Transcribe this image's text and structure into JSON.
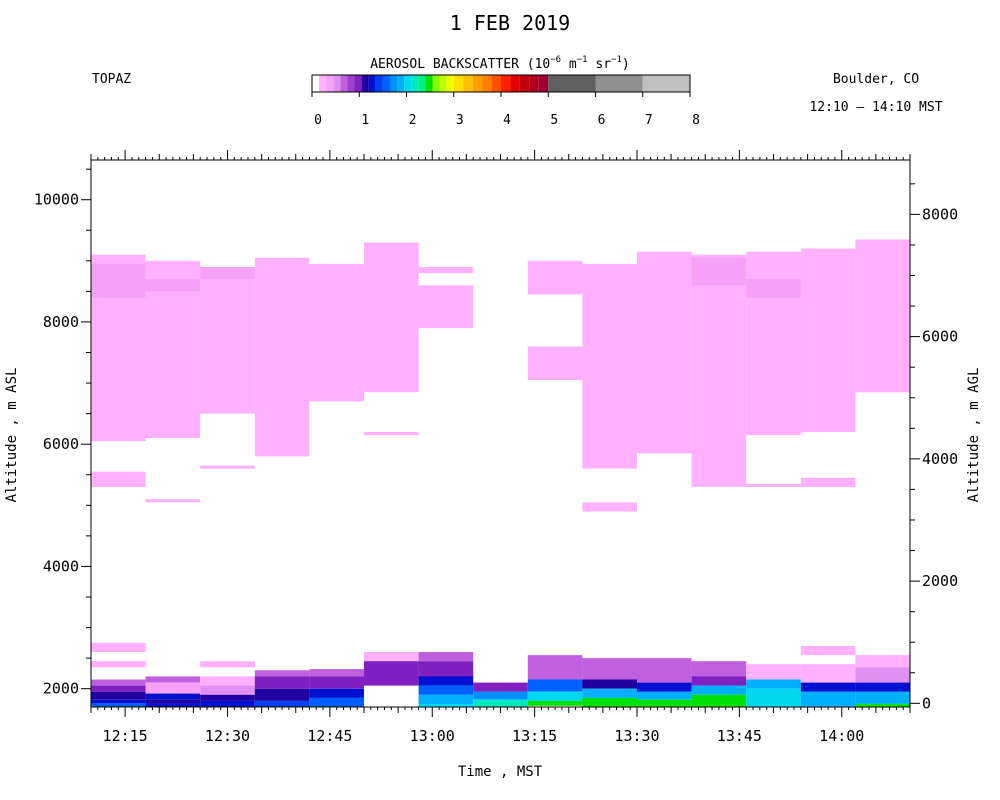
{
  "chart_data": {
    "type": "heatmap",
    "title": "1 FEB 2019",
    "instrument": "TOPAZ",
    "location": "Boulder, CO",
    "time_range": "12:10 – 14:10 MST",
    "colorbar": {
      "title_main": "AEROSOL BACKSCATTER (10",
      "title_exp1": "−6",
      "title_m": " m",
      "title_exp2": "−1",
      "title_sr": " sr",
      "title_exp3": "−1",
      "title_close": ")",
      "range": [
        0,
        8
      ],
      "ticks": [
        "0",
        "1",
        "2",
        "3",
        "4",
        "5",
        "6",
        "7",
        "8"
      ],
      "colors": [
        {
          "from": 0.0,
          "to": 0.15,
          "color": "#ffffff"
        },
        {
          "from": 0.15,
          "to": 0.3,
          "color": "#ffb0ff"
        },
        {
          "from": 0.3,
          "to": 0.45,
          "color": "#f7a0f7"
        },
        {
          "from": 0.45,
          "to": 0.6,
          "color": "#e090f0"
        },
        {
          "from": 0.6,
          "to": 0.75,
          "color": "#c060e0"
        },
        {
          "from": 0.75,
          "to": 0.9,
          "color": "#a040d0"
        },
        {
          "from": 0.9,
          "to": 1.05,
          "color": "#8020c0"
        },
        {
          "from": 1.05,
          "to": 1.2,
          "color": "#2000a0"
        },
        {
          "from": 1.2,
          "to": 1.35,
          "color": "#0010d0"
        },
        {
          "from": 1.35,
          "to": 1.5,
          "color": "#0040f0"
        },
        {
          "from": 1.5,
          "to": 1.65,
          "color": "#0060ff"
        },
        {
          "from": 1.65,
          "to": 1.8,
          "color": "#0090ff"
        },
        {
          "from": 1.8,
          "to": 1.95,
          "color": "#00b0ff"
        },
        {
          "from": 1.95,
          "to": 2.1,
          "color": "#00d8f0"
        },
        {
          "from": 2.1,
          "to": 2.25,
          "color": "#00e8c0"
        },
        {
          "from": 2.25,
          "to": 2.4,
          "color": "#00f080"
        },
        {
          "from": 2.4,
          "to": 2.55,
          "color": "#00e000"
        },
        {
          "from": 2.55,
          "to": 2.7,
          "color": "#80ff00"
        },
        {
          "from": 2.7,
          "to": 2.85,
          "color": "#c0ff00"
        },
        {
          "from": 2.85,
          "to": 3.0,
          "color": "#f0ff00"
        },
        {
          "from": 3.0,
          "to": 3.2,
          "color": "#ffe000"
        },
        {
          "from": 3.2,
          "to": 3.4,
          "color": "#ffc000"
        },
        {
          "from": 3.4,
          "to": 3.6,
          "color": "#ffa000"
        },
        {
          "from": 3.6,
          "to": 3.8,
          "color": "#ff8000"
        },
        {
          "from": 3.8,
          "to": 4.0,
          "color": "#ff5000"
        },
        {
          "from": 4.0,
          "to": 4.2,
          "color": "#ff2000"
        },
        {
          "from": 4.2,
          "to": 4.4,
          "color": "#e00000"
        },
        {
          "from": 4.4,
          "to": 4.6,
          "color": "#c00010"
        },
        {
          "from": 4.6,
          "to": 4.8,
          "color": "#b00020"
        },
        {
          "from": 4.8,
          "to": 5.0,
          "color": "#a00030"
        },
        {
          "from": 5.0,
          "to": 6.0,
          "color": "#606060"
        },
        {
          "from": 6.0,
          "to": 7.0,
          "color": "#909090"
        },
        {
          "from": 7.0,
          "to": 8.0,
          "color": "#c0c0c0"
        }
      ]
    },
    "xlabel": "Time , MST",
    "ylabel_left": "Altitude , m ASL",
    "ylabel_right": "Altitude , m AGL",
    "x_range_minutes_after_noon": [
      10,
      130
    ],
    "x_ticks": [
      {
        "value": 15,
        "label": "12:15"
      },
      {
        "value": 30,
        "label": "12:30"
      },
      {
        "value": 45,
        "label": "12:45"
      },
      {
        "value": 60,
        "label": "13:00"
      },
      {
        "value": 75,
        "label": "13:15"
      },
      {
        "value": 90,
        "label": "13:30"
      },
      {
        "value": 105,
        "label": "13:45"
      },
      {
        "value": 120,
        "label": "14:00"
      }
    ],
    "y_left_range": [
      1700,
      10650
    ],
    "y_left_ticks": [
      {
        "value": 2000,
        "label": "2000"
      },
      {
        "value": 4000,
        "label": "4000"
      },
      {
        "value": 6000,
        "label": "6000"
      },
      {
        "value": 8000,
        "label": "8000"
      },
      {
        "value": 10000,
        "label": "10000"
      }
    ],
    "y_right_ticks": [
      {
        "value": 0,
        "label": "0"
      },
      {
        "value": 2000,
        "label": "2000"
      },
      {
        "value": 4000,
        "label": "4000"
      },
      {
        "value": 6000,
        "label": "6000"
      },
      {
        "value": 8000,
        "label": "8000"
      }
    ],
    "y_right_offset_m": 1760,
    "grid": false,
    "profiles": [
      {
        "start": 10,
        "end": 18,
        "layers": [
          {
            "bottom": 6050,
            "top": 9100,
            "value": 0.2
          },
          {
            "bottom": 8400,
            "top": 8950,
            "value": 0.35
          },
          {
            "bottom": 5300,
            "top": 5550,
            "value": 0.2
          },
          {
            "bottom": 2600,
            "top": 2750,
            "value": 0.2
          },
          {
            "bottom": 2350,
            "top": 2450,
            "value": 0.2
          },
          {
            "bottom": 2050,
            "top": 2150,
            "value": 0.6
          },
          {
            "bottom": 1950,
            "top": 2050,
            "value": 0.9
          },
          {
            "bottom": 1820,
            "top": 1950,
            "value": 1.1
          },
          {
            "bottom": 1760,
            "top": 1820,
            "value": 1.3
          },
          {
            "bottom": 1700,
            "top": 1760,
            "value": 1.6
          }
        ]
      },
      {
        "start": 18,
        "end": 26,
        "layers": [
          {
            "bottom": 6100,
            "top": 9000,
            "value": 0.2
          },
          {
            "bottom": 8500,
            "top": 8700,
            "value": 0.35
          },
          {
            "bottom": 5050,
            "top": 5100,
            "value": 0.2
          },
          {
            "bottom": 2100,
            "top": 2200,
            "value": 0.6
          },
          {
            "bottom": 1920,
            "top": 2100,
            "value": 0.3
          },
          {
            "bottom": 1820,
            "top": 1920,
            "value": 1.3
          },
          {
            "bottom": 1760,
            "top": 1820,
            "value": 1.1
          },
          {
            "bottom": 1700,
            "top": 1760,
            "value": 1.2
          }
        ]
      },
      {
        "start": 26,
        "end": 34,
        "layers": [
          {
            "bottom": 6500,
            "top": 8900,
            "value": 0.2
          },
          {
            "bottom": 8700,
            "top": 8900,
            "value": 0.35
          },
          {
            "bottom": 5600,
            "top": 5650,
            "value": 0.2
          },
          {
            "bottom": 2350,
            "top": 2450,
            "value": 0.2
          },
          {
            "bottom": 2050,
            "top": 2200,
            "value": 0.25
          },
          {
            "bottom": 1900,
            "top": 2050,
            "value": 0.5
          },
          {
            "bottom": 1800,
            "top": 1900,
            "value": 1.1
          },
          {
            "bottom": 1700,
            "top": 1800,
            "value": 1.3
          }
        ]
      },
      {
        "start": 34,
        "end": 42,
        "layers": [
          {
            "bottom": 5800,
            "top": 9050,
            "value": 0.2
          },
          {
            "bottom": 2200,
            "top": 2300,
            "value": 0.6
          },
          {
            "bottom": 2000,
            "top": 2200,
            "value": 0.9
          },
          {
            "bottom": 1800,
            "top": 2000,
            "value": 1.1
          },
          {
            "bottom": 1700,
            "top": 1800,
            "value": 1.4
          }
        ]
      },
      {
        "start": 42,
        "end": 50,
        "layers": [
          {
            "bottom": 6700,
            "top": 8950,
            "value": 0.2
          },
          {
            "bottom": 2200,
            "top": 2320,
            "value": 0.6
          },
          {
            "bottom": 2000,
            "top": 2200,
            "value": 0.9
          },
          {
            "bottom": 1850,
            "top": 2000,
            "value": 1.3
          },
          {
            "bottom": 1700,
            "top": 1850,
            "value": 1.6
          }
        ]
      },
      {
        "start": 50,
        "end": 58,
        "layers": [
          {
            "bottom": 6850,
            "top": 9300,
            "value": 0.2
          },
          {
            "bottom": 6150,
            "top": 6200,
            "value": 0.2
          },
          {
            "bottom": 2450,
            "top": 2600,
            "value": 0.2
          },
          {
            "bottom": 2050,
            "top": 2450,
            "value": 0.95
          }
        ]
      },
      {
        "start": 58,
        "end": 66,
        "layers": [
          {
            "bottom": 7900,
            "top": 8600,
            "value": 0.2
          },
          {
            "bottom": 8800,
            "top": 8900,
            "value": 0.2
          },
          {
            "bottom": 2450,
            "top": 2600,
            "value": 0.6
          },
          {
            "bottom": 2200,
            "top": 2450,
            "value": 0.95
          },
          {
            "bottom": 2050,
            "top": 2200,
            "value": 1.3
          },
          {
            "bottom": 1900,
            "top": 2050,
            "value": 1.6
          },
          {
            "bottom": 1750,
            "top": 1900,
            "value": 1.85
          },
          {
            "bottom": 1700,
            "top": 1750,
            "value": 2.0
          }
        ]
      },
      {
        "start": 66,
        "end": 74,
        "layers": [
          {
            "bottom": 1950,
            "top": 2100,
            "value": 0.95
          },
          {
            "bottom": 1820,
            "top": 1950,
            "value": 1.7
          },
          {
            "bottom": 1700,
            "top": 1820,
            "value": 2.1
          }
        ]
      },
      {
        "start": 74,
        "end": 82,
        "layers": [
          {
            "bottom": 8450,
            "top": 9000,
            "value": 0.2
          },
          {
            "bottom": 7050,
            "top": 7600,
            "value": 0.2
          },
          {
            "bottom": 2150,
            "top": 2550,
            "value": 0.7
          },
          {
            "bottom": 1950,
            "top": 2150,
            "value": 1.6
          },
          {
            "bottom": 1800,
            "top": 1950,
            "value": 2.0
          },
          {
            "bottom": 1720,
            "top": 1800,
            "value": 2.4
          }
        ]
      },
      {
        "start": 82,
        "end": 90,
        "layers": [
          {
            "bottom": 5600,
            "top": 8950,
            "value": 0.2
          },
          {
            "bottom": 4900,
            "top": 5050,
            "value": 0.2
          },
          {
            "bottom": 2150,
            "top": 2500,
            "value": 0.7
          },
          {
            "bottom": 2000,
            "top": 2150,
            "value": 1.1
          },
          {
            "bottom": 1850,
            "top": 2000,
            "value": 1.9
          },
          {
            "bottom": 1700,
            "top": 1850,
            "value": 2.5
          }
        ]
      },
      {
        "start": 90,
        "end": 98,
        "layers": [
          {
            "bottom": 5850,
            "top": 9150,
            "value": 0.2
          },
          {
            "bottom": 2100,
            "top": 2500,
            "value": 0.7
          },
          {
            "bottom": 1950,
            "top": 2100,
            "value": 1.2
          },
          {
            "bottom": 1820,
            "top": 1950,
            "value": 1.9
          },
          {
            "bottom": 1700,
            "top": 1820,
            "value": 2.5
          }
        ]
      },
      {
        "start": 98,
        "end": 106,
        "layers": [
          {
            "bottom": 5300,
            "top": 9100,
            "value": 0.2
          },
          {
            "bottom": 8600,
            "top": 9050,
            "value": 0.35
          },
          {
            "bottom": 2200,
            "top": 2450,
            "value": 0.7
          },
          {
            "bottom": 2050,
            "top": 2200,
            "value": 1.0
          },
          {
            "bottom": 1900,
            "top": 2050,
            "value": 1.8
          },
          {
            "bottom": 1700,
            "top": 1900,
            "value": 2.5
          }
        ]
      },
      {
        "start": 106,
        "end": 114,
        "layers": [
          {
            "bottom": 6150,
            "top": 9150,
            "value": 0.2
          },
          {
            "bottom": 8400,
            "top": 8700,
            "value": 0.35
          },
          {
            "bottom": 5300,
            "top": 5350,
            "value": 0.2
          },
          {
            "bottom": 2150,
            "top": 2400,
            "value": 0.2
          },
          {
            "bottom": 2000,
            "top": 2150,
            "value": 1.8
          },
          {
            "bottom": 1700,
            "top": 2000,
            "value": 2.0
          }
        ]
      },
      {
        "start": 114,
        "end": 122,
        "layers": [
          {
            "bottom": 6200,
            "top": 9200,
            "value": 0.2
          },
          {
            "bottom": 5300,
            "top": 5450,
            "value": 0.2
          },
          {
            "bottom": 2550,
            "top": 2700,
            "value": 0.2
          },
          {
            "bottom": 2100,
            "top": 2400,
            "value": 0.25
          },
          {
            "bottom": 1950,
            "top": 2100,
            "value": 1.3
          },
          {
            "bottom": 1700,
            "top": 1950,
            "value": 1.9
          }
        ]
      },
      {
        "start": 122,
        "end": 130,
        "layers": [
          {
            "bottom": 6850,
            "top": 9350,
            "value": 0.2
          },
          {
            "bottom": 2350,
            "top": 2550,
            "value": 0.2
          },
          {
            "bottom": 2100,
            "top": 2350,
            "value": 0.5
          },
          {
            "bottom": 1950,
            "top": 2100,
            "value": 1.2
          },
          {
            "bottom": 1750,
            "top": 1950,
            "value": 1.8
          },
          {
            "bottom": 1700,
            "top": 1750,
            "value": 2.4
          }
        ]
      }
    ]
  }
}
